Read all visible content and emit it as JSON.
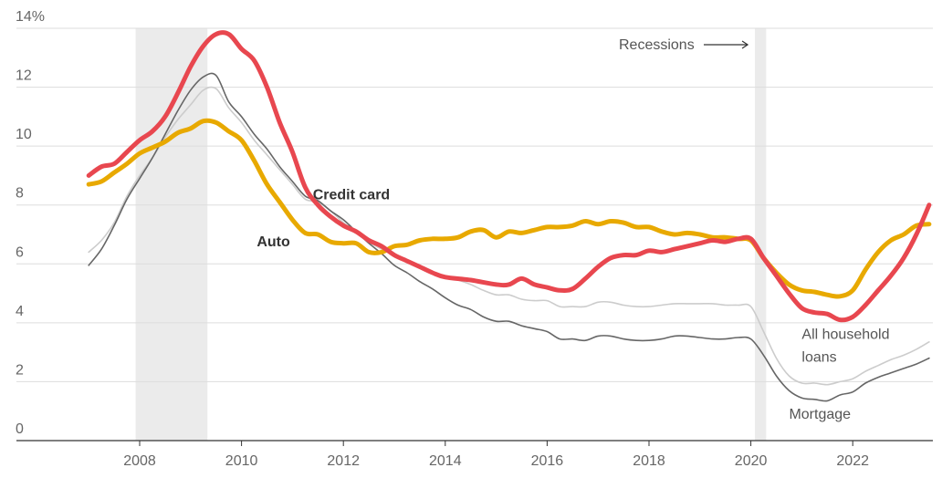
{
  "chart_data": {
    "type": "line",
    "title": "",
    "xlabel": "",
    "ylabel": "",
    "xlim": [
      2006.5,
      2023.7
    ],
    "ylim": [
      0,
      14
    ],
    "y_unit_suffix": "%",
    "y_ticks": [
      0,
      2,
      4,
      6,
      8,
      10,
      12,
      14
    ],
    "x_ticks": [
      2008,
      2010,
      2012,
      2014,
      2016,
      2018,
      2020,
      2022
    ],
    "grid": true,
    "recessions": [
      [
        2007.92,
        2009.33
      ],
      [
        2020.08,
        2020.3
      ]
    ],
    "recession_label": "Recessions",
    "series": [
      {
        "name": "Credit card",
        "color": "#e8474f",
        "label_pos": [
          2011.4,
          8.2
        ],
        "points": [
          [
            2007,
            9.0
          ],
          [
            2007.25,
            9.3
          ],
          [
            2007.5,
            9.4
          ],
          [
            2007.75,
            9.8
          ],
          [
            2008,
            10.2
          ],
          [
            2008.25,
            10.5
          ],
          [
            2008.5,
            11.0
          ],
          [
            2008.75,
            11.8
          ],
          [
            2009,
            12.7
          ],
          [
            2009.25,
            13.4
          ],
          [
            2009.5,
            13.8
          ],
          [
            2009.75,
            13.8
          ],
          [
            2010,
            13.3
          ],
          [
            2010.25,
            12.9
          ],
          [
            2010.5,
            12.0
          ],
          [
            2010.75,
            10.8
          ],
          [
            2011,
            9.8
          ],
          [
            2011.25,
            8.6
          ],
          [
            2011.5,
            8.0
          ],
          [
            2011.75,
            7.6
          ],
          [
            2012,
            7.3
          ],
          [
            2012.25,
            7.1
          ],
          [
            2012.5,
            6.8
          ],
          [
            2012.75,
            6.6
          ],
          [
            2013,
            6.3
          ],
          [
            2013.25,
            6.1
          ],
          [
            2013.5,
            5.9
          ],
          [
            2013.75,
            5.7
          ],
          [
            2014,
            5.55
          ],
          [
            2014.5,
            5.45
          ],
          [
            2015,
            5.3
          ],
          [
            2015.25,
            5.3
          ],
          [
            2015.5,
            5.5
          ],
          [
            2015.75,
            5.3
          ],
          [
            2016,
            5.2
          ],
          [
            2016.25,
            5.1
          ],
          [
            2016.5,
            5.15
          ],
          [
            2016.75,
            5.5
          ],
          [
            2017,
            5.9
          ],
          [
            2017.25,
            6.2
          ],
          [
            2017.5,
            6.3
          ],
          [
            2017.75,
            6.3
          ],
          [
            2018,
            6.45
          ],
          [
            2018.25,
            6.4
          ],
          [
            2018.5,
            6.5
          ],
          [
            2018.75,
            6.6
          ],
          [
            2019,
            6.7
          ],
          [
            2019.25,
            6.8
          ],
          [
            2019.5,
            6.75
          ],
          [
            2019.75,
            6.85
          ],
          [
            2020,
            6.85
          ],
          [
            2020.25,
            6.2
          ],
          [
            2020.5,
            5.6
          ],
          [
            2020.75,
            5.0
          ],
          [
            2021,
            4.5
          ],
          [
            2021.25,
            4.35
          ],
          [
            2021.5,
            4.3
          ],
          [
            2021.75,
            4.1
          ],
          [
            2022,
            4.2
          ],
          [
            2022.25,
            4.6
          ],
          [
            2022.5,
            5.1
          ],
          [
            2022.75,
            5.6
          ],
          [
            2023,
            6.2
          ],
          [
            2023.25,
            7.0
          ],
          [
            2023.5,
            8.0
          ]
        ]
      },
      {
        "name": "Auto",
        "color": "#e8a900",
        "label_pos": [
          2010.3,
          6.6
        ],
        "points": [
          [
            2007,
            8.7
          ],
          [
            2007.25,
            8.8
          ],
          [
            2007.5,
            9.1
          ],
          [
            2007.75,
            9.4
          ],
          [
            2008,
            9.75
          ],
          [
            2008.25,
            9.95
          ],
          [
            2008.5,
            10.15
          ],
          [
            2008.75,
            10.45
          ],
          [
            2009,
            10.6
          ],
          [
            2009.25,
            10.85
          ],
          [
            2009.5,
            10.8
          ],
          [
            2009.75,
            10.5
          ],
          [
            2010,
            10.2
          ],
          [
            2010.25,
            9.5
          ],
          [
            2010.5,
            8.7
          ],
          [
            2010.75,
            8.1
          ],
          [
            2011,
            7.5
          ],
          [
            2011.25,
            7.05
          ],
          [
            2011.5,
            7.0
          ],
          [
            2011.75,
            6.75
          ],
          [
            2012,
            6.7
          ],
          [
            2012.25,
            6.7
          ],
          [
            2012.5,
            6.4
          ],
          [
            2012.75,
            6.4
          ],
          [
            2013,
            6.6
          ],
          [
            2013.25,
            6.65
          ],
          [
            2013.5,
            6.8
          ],
          [
            2013.75,
            6.85
          ],
          [
            2014,
            6.85
          ],
          [
            2014.25,
            6.9
          ],
          [
            2014.5,
            7.1
          ],
          [
            2014.75,
            7.15
          ],
          [
            2015,
            6.9
          ],
          [
            2015.25,
            7.1
          ],
          [
            2015.5,
            7.05
          ],
          [
            2015.75,
            7.15
          ],
          [
            2016,
            7.25
          ],
          [
            2016.25,
            7.25
          ],
          [
            2016.5,
            7.3
          ],
          [
            2016.75,
            7.45
          ],
          [
            2017,
            7.35
          ],
          [
            2017.25,
            7.45
          ],
          [
            2017.5,
            7.4
          ],
          [
            2017.75,
            7.25
          ],
          [
            2018,
            7.25
          ],
          [
            2018.25,
            7.1
          ],
          [
            2018.5,
            7.0
          ],
          [
            2018.75,
            7.05
          ],
          [
            2019,
            7.0
          ],
          [
            2019.25,
            6.9
          ],
          [
            2019.5,
            6.9
          ],
          [
            2019.75,
            6.85
          ],
          [
            2020,
            6.8
          ],
          [
            2020.25,
            6.2
          ],
          [
            2020.5,
            5.7
          ],
          [
            2020.75,
            5.3
          ],
          [
            2021,
            5.1
          ],
          [
            2021.25,
            5.05
          ],
          [
            2021.5,
            4.95
          ],
          [
            2021.75,
            4.9
          ],
          [
            2022,
            5.1
          ],
          [
            2022.25,
            5.8
          ],
          [
            2022.5,
            6.4
          ],
          [
            2022.75,
            6.8
          ],
          [
            2023,
            7.0
          ],
          [
            2023.25,
            7.3
          ],
          [
            2023.5,
            7.35
          ]
        ]
      },
      {
        "name": "All household loans",
        "color": "#cccccc",
        "label_lines": [
          "All household",
          "loans"
        ],
        "label_pos": [
          2021.0,
          3.45
        ],
        "points": [
          [
            2007,
            6.4
          ],
          [
            2007.25,
            6.8
          ],
          [
            2007.5,
            7.4
          ],
          [
            2007.75,
            8.3
          ],
          [
            2008,
            9.0
          ],
          [
            2008.25,
            9.6
          ],
          [
            2008.5,
            10.3
          ],
          [
            2008.75,
            10.9
          ],
          [
            2009,
            11.4
          ],
          [
            2009.25,
            11.9
          ],
          [
            2009.5,
            11.95
          ],
          [
            2009.75,
            11.3
          ],
          [
            2010,
            10.8
          ],
          [
            2010.25,
            10.2
          ],
          [
            2010.5,
            9.7
          ],
          [
            2010.75,
            9.2
          ],
          [
            2011,
            8.7
          ],
          [
            2011.25,
            8.2
          ],
          [
            2011.5,
            8.1
          ],
          [
            2011.75,
            7.8
          ],
          [
            2012,
            7.4
          ],
          [
            2012.25,
            7.1
          ],
          [
            2012.5,
            6.75
          ],
          [
            2012.75,
            6.5
          ],
          [
            2013,
            6.3
          ],
          [
            2013.25,
            6.1
          ],
          [
            2013.5,
            5.9
          ],
          [
            2013.75,
            5.7
          ],
          [
            2014,
            5.55
          ],
          [
            2014.25,
            5.45
          ],
          [
            2014.5,
            5.3
          ],
          [
            2014.75,
            5.1
          ],
          [
            2015,
            4.95
          ],
          [
            2015.25,
            4.95
          ],
          [
            2015.5,
            4.8
          ],
          [
            2015.75,
            4.75
          ],
          [
            2016,
            4.75
          ],
          [
            2016.25,
            4.55
          ],
          [
            2016.5,
            4.55
          ],
          [
            2016.75,
            4.55
          ],
          [
            2017,
            4.7
          ],
          [
            2017.25,
            4.7
          ],
          [
            2017.5,
            4.6
          ],
          [
            2017.75,
            4.55
          ],
          [
            2018,
            4.55
          ],
          [
            2018.25,
            4.6
          ],
          [
            2018.5,
            4.65
          ],
          [
            2018.75,
            4.65
          ],
          [
            2019,
            4.65
          ],
          [
            2019.25,
            4.65
          ],
          [
            2019.5,
            4.6
          ],
          [
            2019.75,
            4.6
          ],
          [
            2020,
            4.55
          ],
          [
            2020.25,
            3.7
          ],
          [
            2020.5,
            2.8
          ],
          [
            2020.75,
            2.2
          ],
          [
            2021,
            1.95
          ],
          [
            2021.25,
            1.95
          ],
          [
            2021.5,
            1.9
          ],
          [
            2021.75,
            2.0
          ],
          [
            2022,
            2.1
          ],
          [
            2022.25,
            2.35
          ],
          [
            2022.5,
            2.55
          ],
          [
            2022.75,
            2.75
          ],
          [
            2023,
            2.9
          ],
          [
            2023.25,
            3.1
          ],
          [
            2023.5,
            3.35
          ]
        ]
      },
      {
        "name": "Mortgage",
        "color": "#666666",
        "label_pos": [
          2020.75,
          0.75
        ],
        "points": [
          [
            2007,
            5.95
          ],
          [
            2007.25,
            6.5
          ],
          [
            2007.5,
            7.3
          ],
          [
            2007.75,
            8.2
          ],
          [
            2008,
            8.9
          ],
          [
            2008.25,
            9.6
          ],
          [
            2008.5,
            10.4
          ],
          [
            2008.75,
            11.2
          ],
          [
            2009,
            11.9
          ],
          [
            2009.25,
            12.35
          ],
          [
            2009.5,
            12.4
          ],
          [
            2009.75,
            11.5
          ],
          [
            2010,
            11.0
          ],
          [
            2010.25,
            10.4
          ],
          [
            2010.5,
            9.9
          ],
          [
            2010.75,
            9.3
          ],
          [
            2011,
            8.8
          ],
          [
            2011.25,
            8.3
          ],
          [
            2011.5,
            8.15
          ],
          [
            2011.75,
            7.8
          ],
          [
            2012,
            7.5
          ],
          [
            2012.25,
            7.1
          ],
          [
            2012.5,
            6.7
          ],
          [
            2012.75,
            6.35
          ],
          [
            2013,
            5.95
          ],
          [
            2013.25,
            5.7
          ],
          [
            2013.5,
            5.4
          ],
          [
            2013.75,
            5.15
          ],
          [
            2014,
            4.85
          ],
          [
            2014.25,
            4.6
          ],
          [
            2014.5,
            4.45
          ],
          [
            2014.75,
            4.2
          ],
          [
            2015,
            4.05
          ],
          [
            2015.25,
            4.05
          ],
          [
            2015.5,
            3.9
          ],
          [
            2015.75,
            3.8
          ],
          [
            2016,
            3.7
          ],
          [
            2016.25,
            3.45
          ],
          [
            2016.5,
            3.45
          ],
          [
            2016.75,
            3.4
          ],
          [
            2017,
            3.55
          ],
          [
            2017.25,
            3.55
          ],
          [
            2017.5,
            3.45
          ],
          [
            2017.75,
            3.4
          ],
          [
            2018,
            3.4
          ],
          [
            2018.25,
            3.45
          ],
          [
            2018.5,
            3.55
          ],
          [
            2018.75,
            3.55
          ],
          [
            2019,
            3.5
          ],
          [
            2019.25,
            3.45
          ],
          [
            2019.5,
            3.45
          ],
          [
            2019.75,
            3.5
          ],
          [
            2020,
            3.45
          ],
          [
            2020.25,
            2.9
          ],
          [
            2020.5,
            2.2
          ],
          [
            2020.75,
            1.7
          ],
          [
            2021,
            1.45
          ],
          [
            2021.25,
            1.4
          ],
          [
            2021.5,
            1.35
          ],
          [
            2021.75,
            1.55
          ],
          [
            2022,
            1.65
          ],
          [
            2022.25,
            1.95
          ],
          [
            2022.5,
            2.15
          ],
          [
            2022.75,
            2.3
          ],
          [
            2023,
            2.45
          ],
          [
            2023.25,
            2.6
          ],
          [
            2023.5,
            2.8
          ]
        ]
      }
    ]
  }
}
